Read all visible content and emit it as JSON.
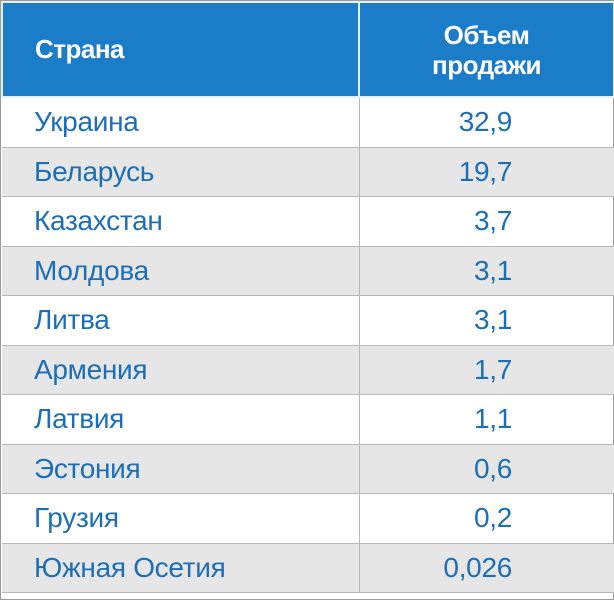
{
  "table": {
    "header": [
      "Страна",
      "Объем\nпродажи"
    ],
    "rows": [
      [
        "Украина",
        "32,9"
      ],
      [
        "Беларусь",
        "19,7"
      ],
      [
        "Казахстан",
        "3,7"
      ],
      [
        "Молдова",
        "3,1"
      ],
      [
        "Литва",
        "3,1"
      ],
      [
        "Армения",
        "1,7"
      ],
      [
        "Латвия",
        "1,1"
      ],
      [
        "Эстония",
        "0,6"
      ],
      [
        "Грузия",
        "0,2"
      ],
      [
        "Южная Осетия",
        "0,026"
      ]
    ]
  }
}
